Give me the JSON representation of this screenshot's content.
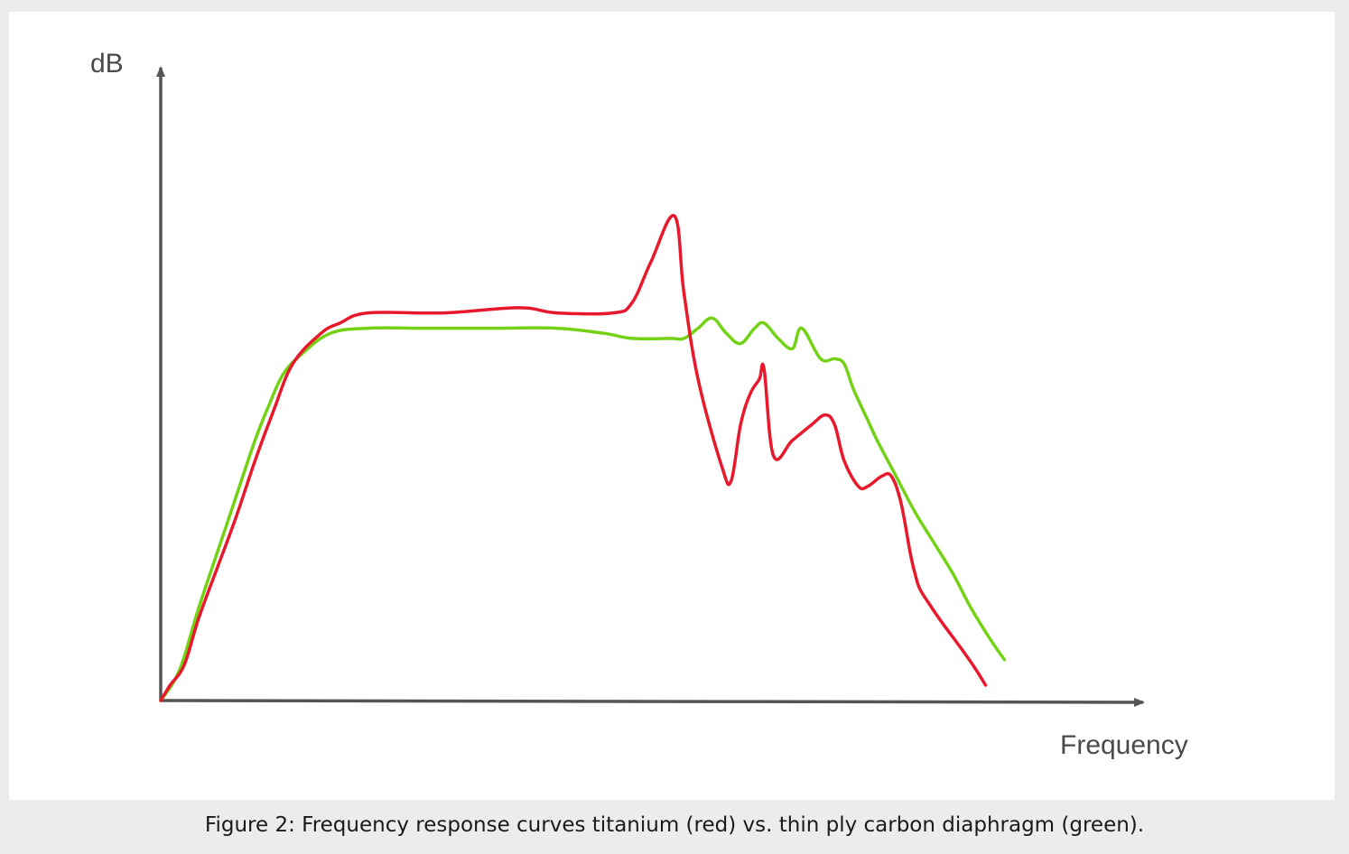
{
  "chart_data": {
    "type": "line",
    "title": "",
    "xlabel": "Frequency",
    "ylabel": "dB",
    "grid": false,
    "legend": "none",
    "xlim": [
      0,
      100
    ],
    "ylim": [
      0,
      100
    ],
    "series": [
      {
        "color": "#e8192c",
        "x": [
          0,
          1,
          2.5,
          4,
          6,
          8,
          10,
          12,
          14,
          17,
          19,
          22,
          30,
          38,
          42,
          48,
          50,
          52,
          54.5,
          55.5,
          57,
          59.5,
          60.5,
          61.5,
          62.5,
          63.5,
          64,
          65,
          67,
          69,
          70.5,
          71.5,
          72.5,
          74,
          75,
          76.5,
          77.5,
          78.5,
          79.5,
          80,
          80.5,
          81.5,
          83,
          85,
          86.5,
          87.5
        ],
        "y": [
          0,
          3,
          7,
          16,
          26,
          36,
          47,
          57,
          66,
          72,
          74,
          76,
          76,
          77,
          76,
          76,
          78,
          86,
          95,
          80,
          63,
          46,
          43,
          54,
          60,
          63,
          65,
          48,
          51,
          54,
          56,
          54,
          47,
          42,
          42,
          44,
          44,
          39,
          29,
          25,
          22,
          19,
          15,
          10,
          6,
          3
        ],
        "name": ""
      },
      {
        "color": "#73d216",
        "x": [
          0,
          2,
          4,
          6,
          8,
          10,
          11.5,
          13,
          15,
          18,
          22,
          28,
          35,
          42,
          47,
          50,
          54,
          55.5,
          57,
          58.5,
          60,
          61.5,
          63,
          64,
          65.5,
          67,
          68,
          70,
          71.5,
          72.5,
          73.5,
          75,
          76,
          78,
          80,
          82,
          84,
          86,
          88,
          89.5
        ],
        "y": [
          0,
          6,
          18,
          29,
          40,
          51,
          58,
          64,
          68,
          72,
          73,
          73,
          73,
          73,
          72,
          71,
          71,
          71,
          73,
          75,
          72,
          70,
          73,
          74,
          71,
          69,
          73,
          67,
          67,
          66,
          61,
          55,
          51,
          44,
          37,
          31,
          25,
          18,
          12,
          8
        ],
        "name": ""
      }
    ]
  },
  "caption": "Figure 2: Frequency response curves titanium (red) vs. thin ply carbon diaphragm (green)."
}
